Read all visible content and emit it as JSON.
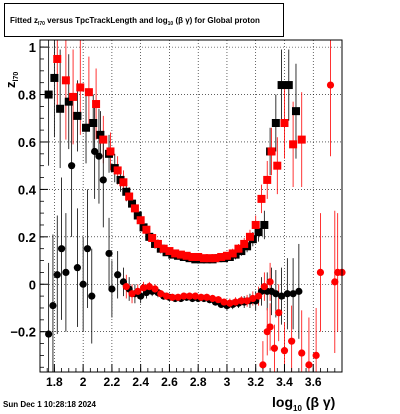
{
  "title": {
    "part1": "Fitted  z",
    "sub1": "l70",
    "part2": "  versus TpcTrackLength and log",
    "sub2": "10",
    "part3": " (β  γ) for Global proton"
  },
  "footer": "Sun Dec  1 10:28:18 2024",
  "ylabel": {
    "main": "z",
    "sub": "l70"
  },
  "xlabel": {
    "main": "log",
    "sub": "10",
    "rest": "(β γ)"
  },
  "chart_data": {
    "type": "scatter",
    "xlim": [
      1.7,
      3.8
    ],
    "ylim": [
      -0.37,
      1.03
    ],
    "xticks": [
      1.8,
      2.0,
      2.2,
      2.4,
      2.6,
      2.8,
      3.0,
      3.2,
      3.4,
      3.6
    ],
    "xtick_labels": [
      "1.8",
      "2",
      "2.2",
      "2.4",
      "2.6",
      "2.8",
      "3",
      "3.2",
      "3.4",
      "3.6"
    ],
    "yticks": [
      -0.2,
      0,
      0.2,
      0.4,
      0.6,
      0.8,
      1
    ],
    "ytick_labels": [
      "−0.2",
      "0",
      "0.2",
      "0.4",
      "0.6",
      "0.8",
      "1"
    ],
    "grid": true,
    "colors": {
      "black": "#000000",
      "red": "#ff0000"
    },
    "series": [
      {
        "marker": "square",
        "color": "#000000",
        "points": [
          [
            1.76,
            0.8,
            0.3
          ],
          [
            1.8,
            0.87,
            0.25
          ],
          [
            1.84,
            0.74,
            0.25
          ],
          [
            1.9,
            0.77,
            0.2
          ],
          [
            1.96,
            0.71,
            0.15
          ],
          [
            2.02,
            0.66,
            0.15
          ],
          [
            2.07,
            0.68,
            0.12
          ],
          [
            2.12,
            0.63,
            0.1
          ],
          [
            2.18,
            0.55,
            0.08
          ],
          [
            2.22,
            0.49,
            0.06
          ],
          [
            2.26,
            0.44,
            0.05
          ],
          [
            2.3,
            0.39,
            0.04
          ],
          [
            2.34,
            0.34,
            0.03
          ],
          [
            2.38,
            0.29,
            0.03
          ],
          [
            2.42,
            0.24,
            0.02
          ],
          [
            2.46,
            0.2,
            0.02
          ],
          [
            2.5,
            0.17,
            0.02
          ],
          [
            2.54,
            0.15,
            0.02
          ],
          [
            2.58,
            0.135,
            0.015
          ],
          [
            2.62,
            0.125,
            0.015
          ],
          [
            2.66,
            0.12,
            0.015
          ],
          [
            2.7,
            0.115,
            0.015
          ],
          [
            2.74,
            0.11,
            0.015
          ],
          [
            2.78,
            0.105,
            0.015
          ],
          [
            2.82,
            0.105,
            0.015
          ],
          [
            2.86,
            0.105,
            0.015
          ],
          [
            2.9,
            0.105,
            0.015
          ],
          [
            2.94,
            0.11,
            0.015
          ],
          [
            2.98,
            0.11,
            0.015
          ],
          [
            3.02,
            0.115,
            0.015
          ],
          [
            3.06,
            0.125,
            0.02
          ],
          [
            3.1,
            0.14,
            0.02
          ],
          [
            3.14,
            0.16,
            0.025
          ],
          [
            3.18,
            0.19,
            0.03
          ],
          [
            3.22,
            0.22,
            0.04
          ],
          [
            3.26,
            0.25,
            0.06
          ],
          [
            3.3,
            0.56,
            0.1
          ],
          [
            3.34,
            0.68,
            0.12
          ],
          [
            3.38,
            0.84,
            0.15
          ],
          [
            3.43,
            0.84,
            0.15
          ],
          [
            3.48,
            0.73,
            0.2
          ]
        ]
      },
      {
        "marker": "square",
        "color": "#ff0000",
        "points": [
          [
            1.82,
            0.95,
            0.2
          ],
          [
            1.88,
            0.86,
            0.25
          ],
          [
            1.93,
            0.79,
            0.2
          ],
          [
            1.98,
            0.83,
            0.2
          ],
          [
            2.04,
            0.81,
            0.15
          ],
          [
            2.09,
            0.76,
            0.15
          ],
          [
            2.14,
            0.61,
            0.1
          ],
          [
            2.19,
            0.56,
            0.08
          ],
          [
            2.24,
            0.48,
            0.06
          ],
          [
            2.28,
            0.43,
            0.05
          ],
          [
            2.32,
            0.37,
            0.04
          ],
          [
            2.36,
            0.32,
            0.03
          ],
          [
            2.4,
            0.27,
            0.03
          ],
          [
            2.44,
            0.23,
            0.02
          ],
          [
            2.48,
            0.195,
            0.02
          ],
          [
            2.52,
            0.17,
            0.02
          ],
          [
            2.56,
            0.15,
            0.015
          ],
          [
            2.6,
            0.14,
            0.015
          ],
          [
            2.64,
            0.13,
            0.015
          ],
          [
            2.68,
            0.125,
            0.015
          ],
          [
            2.72,
            0.12,
            0.015
          ],
          [
            2.76,
            0.115,
            0.015
          ],
          [
            2.8,
            0.115,
            0.015
          ],
          [
            2.84,
            0.11,
            0.015
          ],
          [
            2.88,
            0.11,
            0.015
          ],
          [
            2.92,
            0.11,
            0.015
          ],
          [
            2.96,
            0.115,
            0.015
          ],
          [
            3.0,
            0.12,
            0.015
          ],
          [
            3.04,
            0.13,
            0.02
          ],
          [
            3.08,
            0.15,
            0.02
          ],
          [
            3.12,
            0.17,
            0.025
          ],
          [
            3.16,
            0.2,
            0.03
          ],
          [
            3.2,
            0.25,
            0.04
          ],
          [
            3.24,
            0.36,
            0.06
          ],
          [
            3.28,
            0.44,
            0.08
          ],
          [
            3.31,
            0.56,
            0.1
          ],
          [
            3.35,
            0.5,
            0.12
          ],
          [
            3.4,
            0.68,
            0.15
          ],
          [
            3.46,
            0.59,
            0.18
          ],
          [
            3.52,
            0.61,
            0.2
          ]
        ]
      },
      {
        "marker": "circle",
        "color": "#000000",
        "points": [
          [
            1.76,
            -0.21,
            0.3
          ],
          [
            1.79,
            -0.09,
            0.3
          ],
          [
            1.82,
            0.04,
            0.25
          ],
          [
            1.85,
            0.15,
            0.3
          ],
          [
            1.88,
            0.05,
            0.25
          ],
          [
            1.92,
            0.5,
            0.3
          ],
          [
            1.96,
            0.07,
            0.25
          ],
          [
            2.0,
            0.0,
            0.2
          ],
          [
            2.03,
            0.15,
            0.25
          ],
          [
            2.06,
            -0.05,
            0.2
          ],
          [
            2.08,
            0.56,
            0.2
          ],
          [
            2.11,
            0.54,
            0.2
          ],
          [
            2.14,
            0.44,
            0.2
          ],
          [
            2.18,
            0.13,
            0.15
          ],
          [
            2.2,
            -0.02,
            0.12
          ],
          [
            2.24,
            0.04,
            0.1
          ],
          [
            2.28,
            0.01,
            0.06
          ],
          [
            2.32,
            -0.02,
            0.05
          ],
          [
            2.36,
            -0.04,
            0.04
          ],
          [
            2.4,
            -0.05,
            0.03
          ],
          [
            2.44,
            -0.035,
            0.025
          ],
          [
            2.48,
            -0.03,
            0.02
          ],
          [
            2.52,
            -0.035,
            0.02
          ],
          [
            2.56,
            -0.05,
            0.015
          ],
          [
            2.6,
            -0.055,
            0.015
          ],
          [
            2.64,
            -0.06,
            0.015
          ],
          [
            2.68,
            -0.06,
            0.015
          ],
          [
            2.72,
            -0.055,
            0.015
          ],
          [
            2.76,
            -0.06,
            0.015
          ],
          [
            2.8,
            -0.06,
            0.015
          ],
          [
            2.84,
            -0.06,
            0.015
          ],
          [
            2.88,
            -0.065,
            0.015
          ],
          [
            2.92,
            -0.075,
            0.015
          ],
          [
            2.96,
            -0.085,
            0.015
          ],
          [
            3.0,
            -0.09,
            0.02
          ],
          [
            3.04,
            -0.085,
            0.02
          ],
          [
            3.08,
            -0.08,
            0.02
          ],
          [
            3.12,
            -0.075,
            0.025
          ],
          [
            3.16,
            -0.07,
            0.03
          ],
          [
            3.2,
            -0.07,
            0.04
          ],
          [
            3.24,
            -0.03,
            0.06
          ],
          [
            3.28,
            -0.03,
            0.08
          ],
          [
            3.31,
            -0.03,
            0.1
          ],
          [
            3.34,
            -0.04,
            0.1
          ],
          [
            3.38,
            -0.05,
            0.12
          ],
          [
            3.42,
            -0.04,
            0.15
          ],
          [
            3.46,
            -0.04,
            0.15
          ],
          [
            3.5,
            -0.03,
            0.2
          ]
        ]
      },
      {
        "marker": "circle",
        "color": "#ff0000",
        "points": [
          [
            2.3,
            -0.01,
            0.05
          ],
          [
            2.34,
            -0.04,
            0.04
          ],
          [
            2.38,
            -0.03,
            0.03
          ],
          [
            2.42,
            -0.015,
            0.025
          ],
          [
            2.46,
            -0.01,
            0.02
          ],
          [
            2.5,
            -0.02,
            0.02
          ],
          [
            2.54,
            -0.04,
            0.015
          ],
          [
            2.58,
            -0.05,
            0.015
          ],
          [
            2.62,
            -0.055,
            0.015
          ],
          [
            2.66,
            -0.055,
            0.015
          ],
          [
            2.7,
            -0.05,
            0.015
          ],
          [
            2.74,
            -0.05,
            0.015
          ],
          [
            2.78,
            -0.05,
            0.015
          ],
          [
            2.82,
            -0.055,
            0.015
          ],
          [
            2.86,
            -0.055,
            0.015
          ],
          [
            2.9,
            -0.06,
            0.015
          ],
          [
            2.94,
            -0.065,
            0.015
          ],
          [
            2.98,
            -0.075,
            0.015
          ],
          [
            3.02,
            -0.08,
            0.02
          ],
          [
            3.06,
            -0.075,
            0.02
          ],
          [
            3.1,
            -0.07,
            0.02
          ],
          [
            3.14,
            -0.07,
            0.025
          ],
          [
            3.18,
            -0.06,
            0.03
          ],
          [
            3.22,
            -0.05,
            0.04
          ],
          [
            3.26,
            -0.01,
            0.06
          ],
          [
            3.3,
            0.01,
            0.08
          ],
          [
            3.25,
            -0.34,
            0.1
          ],
          [
            3.28,
            -0.2,
            0.1
          ],
          [
            3.3,
            -0.18,
            0.1
          ],
          [
            3.33,
            -0.27,
            0.1
          ],
          [
            3.36,
            -0.12,
            0.12
          ],
          [
            3.4,
            -0.28,
            0.12
          ],
          [
            3.45,
            -0.24,
            0.15
          ],
          [
            3.52,
            -0.29,
            0.18
          ],
          [
            3.57,
            -0.34,
            0.2
          ],
          [
            3.62,
            -0.3,
            0.2
          ],
          [
            3.65,
            0.05,
            0.25
          ],
          [
            3.72,
            0.84,
            0.3
          ],
          [
            3.75,
            0.01,
            0.3
          ],
          [
            3.77,
            0.05,
            0.25
          ],
          [
            3.8,
            0.05,
            0.25
          ]
        ]
      }
    ]
  }
}
